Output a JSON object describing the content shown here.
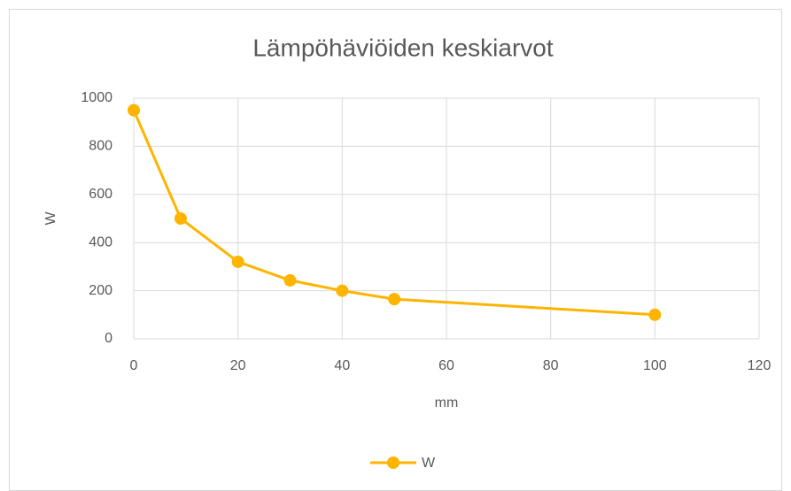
{
  "chart_data": {
    "type": "line",
    "title": "Lämpöhäviöiden keskiarvot",
    "x_label": "mm",
    "y_label": "W",
    "x": [
      0,
      9,
      20,
      30,
      40,
      50,
      100
    ],
    "series": [
      {
        "name": "W",
        "color": "#ffb400",
        "values": [
          950,
          500,
          320,
          243,
          200,
          165,
          100
        ]
      }
    ],
    "xlim": [
      0,
      120
    ],
    "xticks": [
      0,
      20,
      40,
      60,
      80,
      100,
      120
    ],
    "ylim": [
      0,
      1000
    ],
    "yticks": [
      0,
      200,
      400,
      600,
      800,
      1000
    ],
    "grid": true,
    "legend": "bottom"
  }
}
